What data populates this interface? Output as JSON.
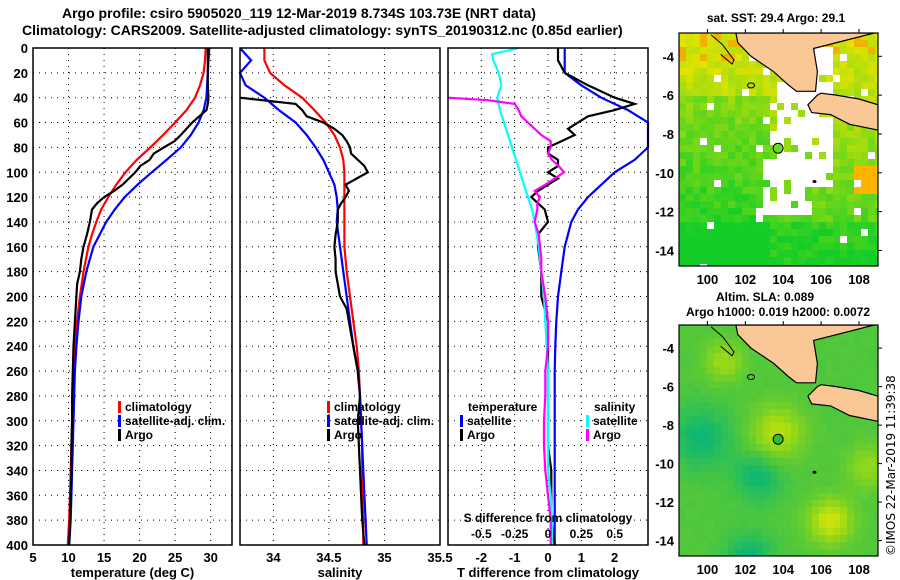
{
  "header": {
    "line1": "Argo profile: csiro 5905020_119 12-Mar-2019 8.734S 103.73E (NRT data)",
    "line2": "Climatology: CARS2009. Satellite-adjusted climatology: synTS_20190312.nc (0.85d earlier)"
  },
  "colors": {
    "climatology": "#ff0000",
    "satellite_adj": "#0000ff",
    "argo": "#000000",
    "sal_satellite": "#00ffff",
    "sal_argo": "#ff00ff",
    "land": "#f9c896"
  },
  "chart_data": [
    {
      "type": "line",
      "name": "temperature-profile",
      "xlabel": "temperature (deg C)",
      "ylabel": "",
      "xlim": [
        5,
        33
      ],
      "ylim": [
        400,
        0
      ],
      "xticks": [
        "5",
        "10",
        "15",
        "20",
        "25",
        "30"
      ],
      "xtick_values": [
        5,
        10,
        15,
        20,
        25,
        30
      ],
      "yticks": [
        "0",
        "20",
        "40",
        "60",
        "80",
        "100",
        "120",
        "140",
        "160",
        "180",
        "200",
        "220",
        "240",
        "260",
        "280",
        "300",
        "320",
        "340",
        "360",
        "380",
        "400"
      ],
      "grid": true,
      "legend": {
        "placement": "bottom-right",
        "entries": [
          "climatology",
          "satellite-adj. clim.",
          "Argo"
        ]
      },
      "series": [
        {
          "name": "climatology",
          "color_key": "climatology",
          "depth": [
            0,
            10,
            20,
            30,
            40,
            50,
            60,
            70,
            80,
            90,
            100,
            110,
            120,
            130,
            140,
            150,
            160,
            180,
            200,
            220,
            240,
            260,
            280,
            300,
            320,
            340,
            360,
            380,
            400
          ],
          "values": [
            29.3,
            29.2,
            29.0,
            28.5,
            27.8,
            26.6,
            25.0,
            23.3,
            21.5,
            19.6,
            18.0,
            16.7,
            15.6,
            14.6,
            13.9,
            13.3,
            12.8,
            12.1,
            11.6,
            11.2,
            10.9,
            10.7,
            10.6,
            10.5,
            10.4,
            10.3,
            10.2,
            10.1,
            9.9
          ]
        },
        {
          "name": "satellite-adj. clim.",
          "color_key": "satellite_adj",
          "depth": [
            0,
            10,
            20,
            30,
            40,
            50,
            60,
            70,
            80,
            90,
            100,
            110,
            120,
            130,
            140,
            150,
            160,
            180,
            200,
            220,
            240,
            260,
            280,
            300,
            320,
            340,
            360,
            380,
            400
          ],
          "values": [
            29.8,
            29.7,
            29.6,
            29.5,
            29.4,
            29.0,
            28.3,
            27.2,
            25.8,
            23.8,
            21.7,
            19.7,
            17.9,
            16.5,
            15.3,
            14.4,
            13.5,
            12.5,
            11.8,
            11.4,
            11.1,
            10.9,
            10.8,
            10.7,
            10.6,
            10.5,
            10.4,
            10.3,
            10.1
          ]
        },
        {
          "name": "Argo",
          "color_key": "argo",
          "depth": [
            0,
            20,
            30,
            40,
            45,
            50,
            55,
            60,
            65,
            70,
            75,
            80,
            85,
            90,
            95,
            100,
            105,
            110,
            115,
            120,
            125,
            130,
            140,
            150,
            160,
            170,
            180,
            190,
            200,
            220,
            240,
            260,
            280,
            300,
            320,
            340,
            360,
            380,
            400
          ],
          "values": [
            29.6,
            29.6,
            29.6,
            29.7,
            29.6,
            29.4,
            28.4,
            27.4,
            26.6,
            25.8,
            24.9,
            23.4,
            22.0,
            21.4,
            20.1,
            19.4,
            18.5,
            17.6,
            16.4,
            15.0,
            14.0,
            13.3,
            13.0,
            12.6,
            12.1,
            11.8,
            11.6,
            11.2,
            11.1,
            10.9,
            10.7,
            10.6,
            10.5,
            10.5,
            10.4,
            10.4,
            10.3,
            10.2,
            10.1
          ]
        }
      ]
    },
    {
      "type": "line",
      "name": "salinity-profile",
      "xlabel": "salinity",
      "xlim": [
        33.7,
        35.5
      ],
      "ylim": [
        400,
        0
      ],
      "xticks": [
        "34",
        "34.5",
        "35",
        "35.5"
      ],
      "xtick_values": [
        34,
        34.5,
        35,
        35.5
      ],
      "grid": true,
      "legend": {
        "placement": "bottom-right",
        "entries": [
          "climatology",
          "satellite-adj. clim.",
          "Argo"
        ]
      },
      "series": [
        {
          "name": "climatology",
          "color_key": "climatology",
          "depth": [
            0,
            10,
            20,
            30,
            40,
            50,
            60,
            70,
            80,
            90,
            100,
            120,
            140,
            160,
            180,
            200,
            220,
            240,
            260,
            280,
            300,
            320,
            340,
            360,
            380,
            400
          ],
          "values": [
            33.92,
            33.92,
            33.97,
            34.1,
            34.26,
            34.37,
            34.47,
            34.55,
            34.6,
            34.63,
            34.64,
            34.64,
            34.64,
            34.64,
            34.66,
            34.69,
            34.72,
            34.75,
            34.77,
            34.78,
            34.79,
            34.8,
            34.8,
            34.8,
            34.81,
            34.81
          ]
        },
        {
          "name": "satellite-adj. clim.",
          "color_key": "satellite_adj",
          "depth": [
            0,
            2,
            10,
            20,
            30,
            40,
            50,
            60,
            70,
            80,
            90,
            100,
            110,
            120,
            130,
            140,
            160,
            180,
            200,
            220,
            240,
            260,
            280,
            300,
            320,
            340,
            360,
            380,
            400
          ],
          "values": [
            33.7,
            33.72,
            33.8,
            33.7,
            33.75,
            33.92,
            34.05,
            34.2,
            34.3,
            34.38,
            34.45,
            34.5,
            34.55,
            34.57,
            34.58,
            34.57,
            34.6,
            34.63,
            34.66,
            34.69,
            34.72,
            34.76,
            34.78,
            34.79,
            34.8,
            34.81,
            34.82,
            34.83,
            34.84
          ]
        },
        {
          "name": "Argo",
          "color_key": "argo",
          "depth": [
            40,
            42,
            45,
            50,
            55,
            60,
            65,
            70,
            75,
            80,
            85,
            90,
            95,
            100,
            105,
            110,
            115,
            120,
            125,
            130,
            140,
            150,
            160,
            170,
            180,
            190,
            200,
            210,
            220,
            240,
            260,
            280,
            300,
            320,
            340,
            360,
            380,
            400
          ],
          "values": [
            33.7,
            33.9,
            34.2,
            34.26,
            34.3,
            34.45,
            34.55,
            34.62,
            34.66,
            34.69,
            34.7,
            34.76,
            34.82,
            34.85,
            34.75,
            34.65,
            34.68,
            34.65,
            34.61,
            34.58,
            34.58,
            34.56,
            34.55,
            34.56,
            34.56,
            34.58,
            34.6,
            34.66,
            34.68,
            34.72,
            34.76,
            34.78,
            34.76,
            34.77,
            34.78,
            34.79,
            34.8,
            34.82
          ]
        }
      ]
    },
    {
      "type": "line",
      "name": "difference-profile",
      "xlabel": "T difference from climatology",
      "xlim": [
        -3.0,
        3.0
      ],
      "ylim": [
        400,
        0
      ],
      "xticks": [
        "-2",
        "-1",
        "0",
        "1",
        "2"
      ],
      "xtick_values": [
        -2,
        -1,
        0,
        1,
        2
      ],
      "secondary_xlabel": "S difference from climatology",
      "secondary_xticks": [
        "-0.5",
        "-0.25",
        "0",
        "0.25",
        "0.5"
      ],
      "secondary_xtick_values": [
        -0.5,
        -0.25,
        0,
        0.25,
        0.5
      ],
      "grid": true,
      "legend": {
        "placement": "bottom",
        "temperature": {
          "title": "temperature",
          "entries": [
            "satellite",
            "Argo"
          ]
        },
        "salinity": {
          "title": "salinity",
          "entries": [
            "satellite",
            "Argo"
          ]
        }
      },
      "series": [
        {
          "name": "temperature satellite",
          "color_key": "satellite_adj",
          "axis": "T",
          "depth": [
            0,
            10,
            20,
            30,
            40,
            50,
            60,
            70,
            80,
            90,
            100,
            110,
            120,
            130,
            140,
            150,
            160,
            180,
            200,
            220,
            240,
            260,
            280,
            300,
            320,
            340,
            360,
            380,
            400
          ],
          "values": [
            0.5,
            0.5,
            0.5,
            1.0,
            1.6,
            2.4,
            3.0,
            3.0,
            3.0,
            2.6,
            2.0,
            1.6,
            1.2,
            0.9,
            0.7,
            0.6,
            0.5,
            0.4,
            0.3,
            0.25,
            0.22,
            0.2,
            0.2,
            0.2,
            0.2,
            0.2,
            0.2,
            0.2,
            0.2
          ]
        },
        {
          "name": "temperature Argo",
          "color_key": "argo",
          "axis": "T",
          "depth": [
            0,
            10,
            20,
            30,
            40,
            45,
            50,
            55,
            60,
            65,
            70,
            75,
            80,
            85,
            90,
            95,
            100,
            105,
            110,
            115,
            120,
            125,
            130,
            140,
            150,
            160,
            180,
            200,
            220,
            240,
            260,
            280,
            300,
            320,
            340,
            360,
            380,
            400
          ],
          "values": [
            0.3,
            0.3,
            0.5,
            1.2,
            2.0,
            2.6,
            2.0,
            1.2,
            0.9,
            0.6,
            0.8,
            0.4,
            0.0,
            0.0,
            0.3,
            0.3,
            0.0,
            0.3,
            0.0,
            -0.3,
            -0.5,
            -0.3,
            -0.1,
            0.0,
            -0.3,
            -0.3,
            -0.2,
            -0.2,
            0.0,
            0.0,
            0.0,
            0.0,
            0.0,
            0.0,
            0.1,
            0.1,
            0.1,
            0.2
          ]
        },
        {
          "name": "salinity satellite",
          "color_key": "sal_satellite",
          "axis": "S",
          "depth": [
            0,
            5,
            10,
            20,
            30,
            40,
            50,
            60,
            70,
            80,
            90,
            100,
            110,
            120,
            130,
            140,
            160,
            180,
            200,
            220,
            240,
            260,
            280,
            300,
            320,
            340,
            360,
            380,
            400
          ],
          "values": [
            -0.22,
            -0.42,
            -0.41,
            -0.37,
            -0.35,
            -0.38,
            -0.36,
            -0.33,
            -0.3,
            -0.27,
            -0.24,
            -0.21,
            -0.18,
            -0.15,
            -0.12,
            -0.1,
            -0.07,
            -0.05,
            -0.03,
            -0.02,
            -0.01,
            0.0,
            0.0,
            0.0,
            0.0,
            0.0,
            0.02,
            0.03,
            0.03
          ]
        },
        {
          "name": "salinity Argo",
          "color_key": "sal_argo",
          "axis": "S",
          "depth": [
            40,
            42,
            45,
            50,
            55,
            60,
            65,
            70,
            75,
            80,
            85,
            90,
            95,
            100,
            105,
            110,
            115,
            120,
            125,
            130,
            140,
            150,
            160,
            170,
            180,
            200,
            220,
            240,
            260,
            280,
            300,
            320,
            340,
            360,
            380,
            400
          ],
          "values": [
            -0.75,
            -0.45,
            -0.25,
            -0.22,
            -0.2,
            -0.15,
            -0.1,
            -0.05,
            0.02,
            0.02,
            0.0,
            0.03,
            0.08,
            0.12,
            0.05,
            -0.02,
            -0.1,
            -0.06,
            -0.08,
            -0.08,
            -0.1,
            -0.07,
            -0.06,
            -0.05,
            -0.05,
            -0.02,
            0.0,
            0.0,
            -0.02,
            -0.02,
            -0.03,
            -0.03,
            -0.02,
            0.0,
            0.02,
            0.02
          ]
        }
      ]
    },
    {
      "type": "heatmap",
      "name": "sst-map",
      "title": "sat. SST: 29.4 Argo: 29.1",
      "xticks": [
        "100",
        "102",
        "104",
        "106",
        "108"
      ],
      "xtick_values": [
        100,
        102,
        104,
        106,
        108
      ],
      "yticks": [
        "-4",
        "-6",
        "-8",
        "-10",
        "-12",
        "-14"
      ],
      "ytick_values": [
        -4,
        -6,
        -8,
        -10,
        -12,
        -14
      ],
      "xlim": [
        98.5,
        109
      ],
      "ylim": [
        -14.8,
        -2.8
      ],
      "argo_position": {
        "lon": 103.73,
        "lat": -8.734
      }
    },
    {
      "type": "heatmap",
      "name": "sla-map",
      "title": "Altim. SLA: 0.089",
      "subtitle": "Argo h1000: 0.019 h2000: 0.0072",
      "xticks": [
        "100",
        "102",
        "104",
        "106",
        "108"
      ],
      "xtick_values": [
        100,
        102,
        104,
        106,
        108
      ],
      "yticks": [
        "-4",
        "-6",
        "-8",
        "-10",
        "-12",
        "-14"
      ],
      "ytick_values": [
        -4,
        -6,
        -8,
        -10,
        -12,
        -14
      ],
      "xlim": [
        98.5,
        109
      ],
      "ylim": [
        -14.8,
        -2.8
      ],
      "argo_position": {
        "lon": 103.73,
        "lat": -8.734
      }
    }
  ],
  "footer": {
    "stamp": "©IMOS 22-Mar-2019 11:39:38"
  }
}
